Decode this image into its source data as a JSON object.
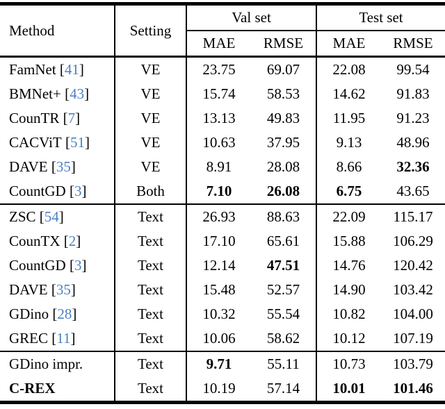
{
  "paper_table": {
    "headers": {
      "method": "Method",
      "setting": "Setting",
      "val_set": "Val set",
      "test_set": "Test set",
      "val_mae": "MAE",
      "val_rmse": "RMSE",
      "test_mae": "MAE",
      "test_rmse": "RMSE"
    },
    "colors": {
      "citation_blue": "#4b80c2",
      "text": "#000000",
      "rule": "#000000",
      "background": "#ffffff"
    },
    "groups": [
      {
        "name": "visual-exemplar-methods",
        "rows": [
          {
            "method": "FamNet",
            "cite": "41",
            "setting": "VE",
            "val_mae": "23.75",
            "val_rmse": "69.07",
            "test_mae": "22.08",
            "test_rmse": "99.54",
            "bold": []
          },
          {
            "method": "BMNet+",
            "cite": "43",
            "setting": "VE",
            "val_mae": "15.74",
            "val_rmse": "58.53",
            "test_mae": "14.62",
            "test_rmse": "91.83",
            "bold": []
          },
          {
            "method": "CounTR",
            "cite": "7",
            "setting": "VE",
            "val_mae": "13.13",
            "val_rmse": "49.83",
            "test_mae": "11.95",
            "test_rmse": "91.23",
            "bold": []
          },
          {
            "method": "CACViT",
            "cite": "51",
            "setting": "VE",
            "val_mae": "10.63",
            "val_rmse": "37.95",
            "test_mae": "9.13",
            "test_rmse": "48.96",
            "bold": []
          },
          {
            "method": "DAVE",
            "cite": "35",
            "setting": "VE",
            "val_mae": "8.91",
            "val_rmse": "28.08",
            "test_mae": "8.66",
            "test_rmse": "32.36",
            "bold": [
              "test_rmse"
            ]
          },
          {
            "method": "CountGD",
            "cite": "3",
            "setting": "Both",
            "val_mae": "7.10",
            "val_rmse": "26.08",
            "test_mae": "6.75",
            "test_rmse": "43.65",
            "bold": [
              "val_mae",
              "val_rmse",
              "test_mae"
            ]
          }
        ]
      },
      {
        "name": "text-methods",
        "rows": [
          {
            "method": "ZSC",
            "cite": "54",
            "setting": "Text",
            "val_mae": "26.93",
            "val_rmse": "88.63",
            "test_mae": "22.09",
            "test_rmse": "115.17",
            "bold": []
          },
          {
            "method": "CounTX",
            "cite": "2",
            "setting": "Text",
            "val_mae": "17.10",
            "val_rmse": "65.61",
            "test_mae": "15.88",
            "test_rmse": "106.29",
            "bold": []
          },
          {
            "method": "CountGD",
            "cite": "3",
            "setting": "Text",
            "val_mae": "12.14",
            "val_rmse": "47.51",
            "test_mae": "14.76",
            "test_rmse": "120.42",
            "bold": [
              "val_rmse"
            ]
          },
          {
            "method": "DAVE",
            "cite": "35",
            "setting": "Text",
            "val_mae": "15.48",
            "val_rmse": "52.57",
            "test_mae": "14.90",
            "test_rmse": "103.42",
            "bold": []
          },
          {
            "method": "GDino",
            "cite": "28",
            "setting": "Text",
            "val_mae": "10.32",
            "val_rmse": "55.54",
            "test_mae": "10.82",
            "test_rmse": "104.00",
            "bold": []
          },
          {
            "method": "GREC",
            "cite": "11",
            "setting": "Text",
            "val_mae": "10.06",
            "val_rmse": "58.62",
            "test_mae": "10.12",
            "test_rmse": "107.19",
            "bold": []
          }
        ]
      },
      {
        "name": "ours-methods",
        "rows": [
          {
            "method": "GDino impr.",
            "cite": null,
            "setting": "Text",
            "val_mae": "9.71",
            "val_rmse": "55.11",
            "test_mae": "10.73",
            "test_rmse": "103.79",
            "bold": [
              "val_mae"
            ]
          },
          {
            "method": "C-REX",
            "cite": null,
            "setting": "Text",
            "val_mae": "10.19",
            "val_rmse": "57.14",
            "test_mae": "10.01",
            "test_rmse": "101.46",
            "bold": [
              "test_mae",
              "test_rmse"
            ],
            "method_bold": true
          }
        ]
      }
    ]
  }
}
